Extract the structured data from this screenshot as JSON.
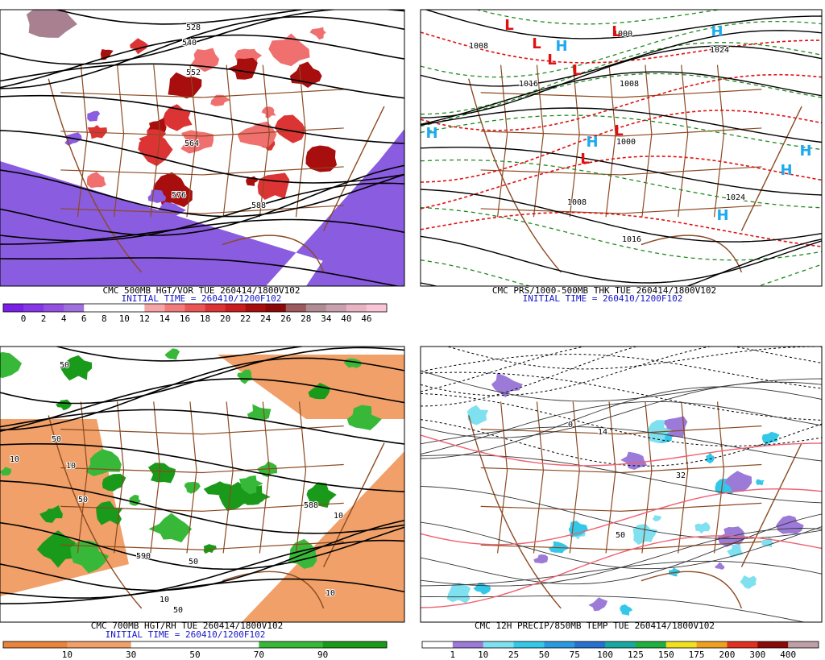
{
  "panels": [
    {
      "caption": "CMC 500MB HGT/VOR TUE 260414/1800V102",
      "init_time": "INITIAL TIME = 260410/1200F102",
      "contour_labels": [
        "528",
        "540",
        "552",
        "564",
        "576",
        "588"
      ],
      "colorbar": {
        "labels": [
          "0",
          "2",
          "4",
          "6",
          "8",
          "10",
          "12",
          "14",
          "16",
          "18",
          "20",
          "22",
          "24",
          "26",
          "28",
          "34",
          "40",
          "46"
        ],
        "colors": [
          "#7a20e6",
          "#8636e4",
          "#9450e0",
          "#a070dc",
          "#ffffff",
          "#ffffff",
          "#ffffff",
          "#f6a6a6",
          "#f27c7c",
          "#ea5656",
          "#dc3434",
          "#c81e1e",
          "#a80e0e",
          "#8a0808",
          "#9c5a5e",
          "#b08c94",
          "#c8a0ae",
          "#e8b4c4",
          "#f8c6d6"
        ]
      }
    },
    {
      "caption": "CMC PRS/1000-500MB THK TUE 260414/1800V102",
      "init_time": "INITIAL TIME = 260410/1200F102",
      "contour_labels": [
        "1008",
        "1016",
        "1008",
        "1000",
        "1008",
        "1024",
        "1016",
        "1024",
        "1000"
      ],
      "pressure_centers": [
        "H",
        "H",
        "H",
        "H",
        "H",
        "H",
        "H",
        "L",
        "L",
        "L",
        "L",
        "L",
        "L",
        "L"
      ]
    },
    {
      "caption": "CMC 700MB HGT/RH TUE 260414/1800V102",
      "init_time": "INITIAL TIME = 260410/1200F102",
      "contour_labels": [
        "50",
        "50",
        "10",
        "50",
        "10",
        "10",
        "50",
        "10",
        "50",
        "10",
        "590",
        "588"
      ],
      "colorbar": {
        "labels": [
          "10",
          "30",
          "50",
          "70",
          "90"
        ],
        "colors": [
          "#e8843c",
          "#f0a068",
          "#ffffff",
          "#ffffff",
          "#38b838",
          "#1a9a1a"
        ]
      }
    },
    {
      "caption": "CMC 12H PRECIP/850MB TEMP TUE 260414/1800V102",
      "contour_labels": [
        "32",
        "0",
        "50",
        "14"
      ],
      "colorbar": {
        "labels": [
          "1",
          "10",
          "25",
          "50",
          "75",
          "100",
          "125",
          "150",
          "175",
          "200",
          "300",
          "400"
        ],
        "colors": [
          "#ffffff",
          "#9c7ad8",
          "#7fe0f0",
          "#34c8e8",
          "#2a9ae0",
          "#2870d0",
          "#18a8a0",
          "#20b040",
          "#f0e020",
          "#f0a020",
          "#e03020",
          "#8a0a0a",
          "#c0a0a8"
        ]
      }
    }
  ]
}
